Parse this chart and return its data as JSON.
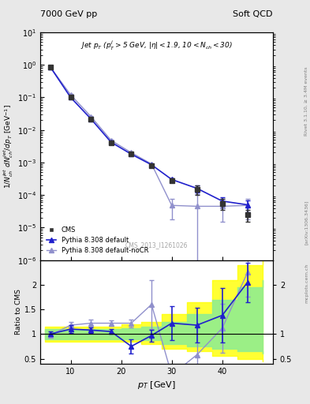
{
  "title_left": "7000 GeV pp",
  "title_right": "Soft QCD",
  "annotation": "Jet p$_{T}$ (p$^{j}_{T}$>5 GeV, |$\\eta$|<1.9, 10<N$_{ch}$<30)",
  "watermark": "CMS_2013_I1261026",
  "ylabel_main": "1/N$_{ch}^{jet}$ dN$_{ch}^{jet}$/dp$_{T}$ [GeV$^{-1}$]",
  "ylabel_ratio": "Ratio to CMS",
  "xlabel": "p$_{T}$ [GeV]",
  "rivet_label": "Rivet 3.1.10, ≥ 3.4M events",
  "arxiv_label": "[arXiv:1306.3436]",
  "mcplots_label": "mcplots.cern.ch",
  "cms_x": [
    6,
    10,
    14,
    18,
    22,
    26,
    30,
    35,
    40,
    45
  ],
  "cms_y": [
    0.85,
    0.1,
    0.022,
    0.004,
    0.0018,
    0.0008,
    0.00028,
    0.00015,
    5.5e-05,
    2.5e-05
  ],
  "cms_yerr": [
    0.05,
    0.008,
    0.002,
    0.0004,
    0.0002,
    0.0001,
    4e-05,
    5e-05,
    2e-05,
    1e-05
  ],
  "py_default_x": [
    6,
    10,
    14,
    18,
    22,
    26,
    30,
    35,
    40,
    45
  ],
  "py_default_y": [
    0.85,
    0.1,
    0.022,
    0.0042,
    0.0018,
    0.00085,
    0.0003,
    0.00016,
    6.5e-05,
    5e-05
  ],
  "py_default_yerr": [
    0.03,
    0.005,
    0.001,
    0.0002,
    0.0001,
    5e-05,
    2e-05,
    4e-05,
    2e-05,
    2e-05
  ],
  "py_nocr_x": [
    6,
    10,
    14,
    18,
    22,
    26,
    30,
    35,
    40,
    45
  ],
  "py_nocr_y": [
    0.85,
    0.12,
    0.026,
    0.0048,
    0.002,
    0.0009,
    4.8e-05,
    4.5e-05,
    4.5e-05,
    4.8e-05
  ],
  "py_nocr_yerr": [
    0.03,
    0.006,
    0.001,
    0.0002,
    0.0001,
    6e-05,
    3e-05,
    6e-05,
    3e-05,
    3e-05
  ],
  "ratio_default_x": [
    6,
    10,
    14,
    18,
    22,
    26,
    30,
    35,
    40,
    45
  ],
  "ratio_default_y": [
    1.0,
    1.1,
    1.08,
    1.05,
    0.75,
    0.97,
    1.22,
    1.18,
    1.38,
    2.05
  ],
  "ratio_default_yerr": [
    0.05,
    0.08,
    0.06,
    0.05,
    0.15,
    0.12,
    0.35,
    0.35,
    0.55,
    0.4
  ],
  "ratio_nocr_x": [
    6,
    10,
    14,
    18,
    22,
    26,
    30,
    35,
    40,
    45
  ],
  "ratio_nocr_y": [
    0.98,
    1.18,
    1.22,
    1.22,
    1.22,
    1.6,
    0.17,
    0.58,
    1.12,
    2.25
  ],
  "ratio_nocr_yerr": [
    0.04,
    0.07,
    0.07,
    0.06,
    0.08,
    0.5,
    0.15,
    0.6,
    0.5,
    0.5
  ],
  "yellow_band_x": [
    5,
    8,
    12,
    16,
    20,
    24,
    28,
    33,
    38,
    43,
    48
  ],
  "yellow_band_low": [
    0.85,
    0.85,
    0.85,
    0.85,
    0.85,
    0.8,
    0.7,
    0.65,
    0.55,
    0.5,
    0.45
  ],
  "yellow_band_high": [
    1.15,
    1.15,
    1.15,
    1.15,
    1.2,
    1.25,
    1.4,
    1.65,
    2.1,
    2.4,
    2.6
  ],
  "green_band_x": [
    5,
    8,
    12,
    16,
    20,
    24,
    28,
    33,
    38,
    43,
    48
  ],
  "green_band_low": [
    0.9,
    0.9,
    0.9,
    0.9,
    0.9,
    0.87,
    0.8,
    0.75,
    0.7,
    0.65,
    0.6
  ],
  "green_band_high": [
    1.1,
    1.1,
    1.1,
    1.1,
    1.12,
    1.15,
    1.25,
    1.4,
    1.7,
    1.95,
    2.1
  ],
  "cms_color": "#333333",
  "py_default_color": "#2020cc",
  "py_nocr_color": "#9090cc",
  "background_color": "#e8e8e8",
  "panel_bg": "#ffffff",
  "xlim": [
    4,
    50
  ],
  "ylim_main": [
    1e-06,
    10
  ],
  "ylim_ratio": [
    0.4,
    2.5
  ]
}
